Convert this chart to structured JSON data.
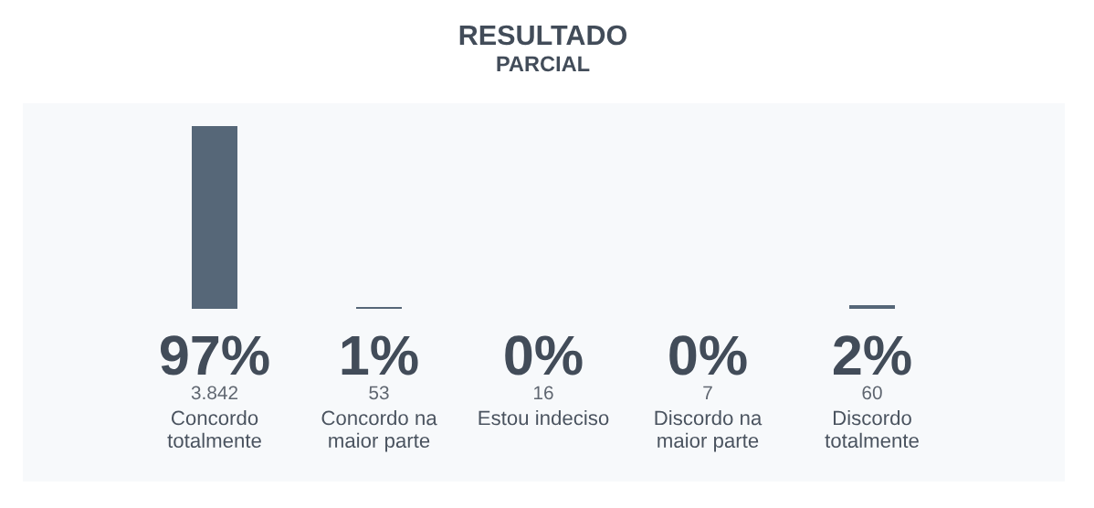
{
  "chart_data": {
    "type": "bar",
    "title": "RESULTADO",
    "subtitle": "PARCIAL",
    "categories": [
      "Concordo\ntotalmente",
      "Concordo na\nmaior parte",
      "Estou indeciso",
      "Discordo na\nmaior parte",
      "Discordo\ntotalmente"
    ],
    "values": [
      97,
      1,
      0,
      0,
      2
    ],
    "color": "#566778",
    "value_labels": [
      "97%",
      "1%",
      "0%",
      "0%",
      "2%"
    ],
    "annotations": [
      "3.842",
      "53",
      "16",
      "7",
      "60"
    ],
    "tick_labels": "x"
  }
}
